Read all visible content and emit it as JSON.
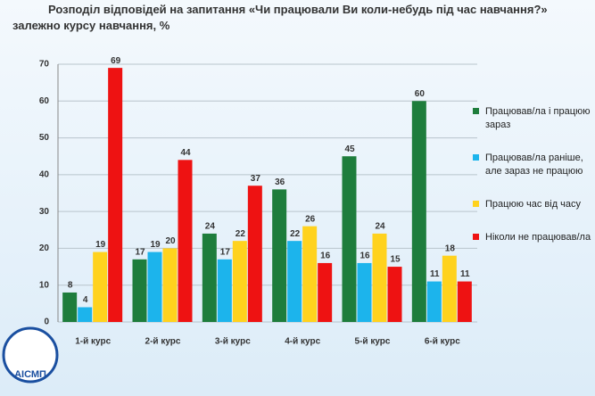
{
  "chart_data": {
    "type": "bar",
    "title": "Розподіл відповідей на запитання «Чи працювали Ви коли-небудь під час навчання?» залежно курсу навчання, %",
    "categories": [
      "1-й курс",
      "2-й курс",
      "3-й курс",
      "4-й курс",
      "5-й курс",
      "6-й курс"
    ],
    "series": [
      {
        "name": "Працював/ла і працюю зараз",
        "color": "#1e7d3c",
        "values": [
          8,
          17,
          24,
          36,
          45,
          60
        ]
      },
      {
        "name": "Працював/ла раніше, але зараз не працюю",
        "color": "#1cb4ec",
        "values": [
          4,
          19,
          17,
          22,
          16,
          11
        ]
      },
      {
        "name": "Працюю час від часу",
        "color": "#ffd21e",
        "values": [
          19,
          20,
          22,
          26,
          24,
          18
        ]
      },
      {
        "name": "Ніколи не працював/ла",
        "color": "#ee1212",
        "values": [
          69,
          44,
          37,
          16,
          15,
          11
        ]
      }
    ],
    "ylim": [
      0,
      70
    ],
    "yticks": [
      0,
      10,
      20,
      30,
      40,
      50,
      60,
      70
    ],
    "grid": true,
    "legend": "right"
  },
  "logo": "АІСМП"
}
